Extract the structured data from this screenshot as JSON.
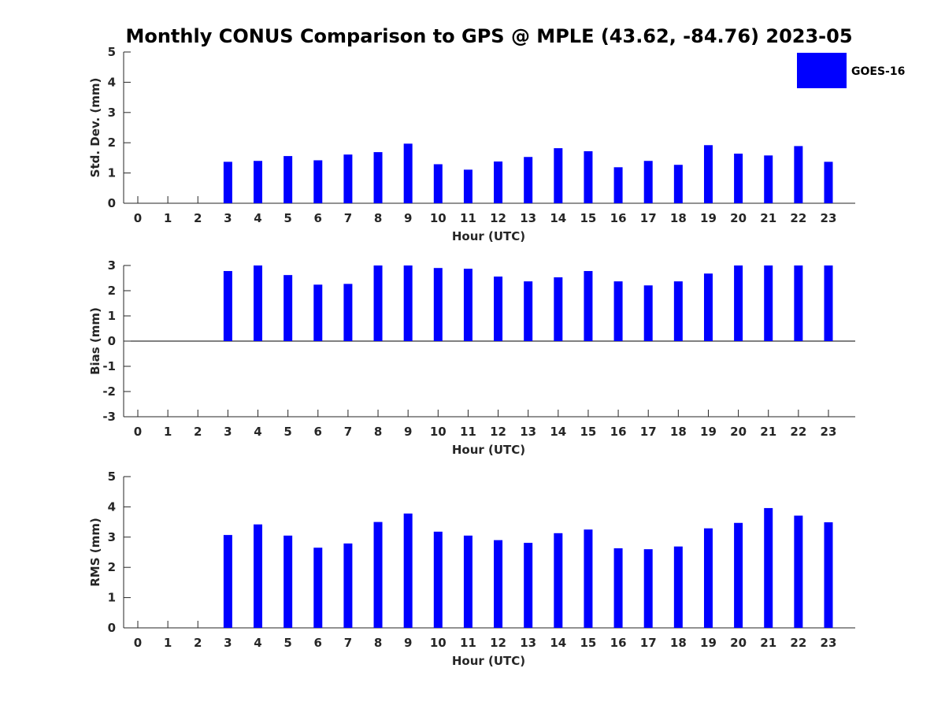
{
  "chart_data": {
    "type": "bar",
    "title": "Monthly CONUS Comparison to GPS @ MPLE (43.62, -84.76) 2023-05",
    "legend": {
      "label": "GOES-16",
      "color": "#0000ff",
      "position": "top-right"
    },
    "categories": [
      "0",
      "1",
      "2",
      "3",
      "4",
      "5",
      "6",
      "7",
      "8",
      "9",
      "10",
      "11",
      "12",
      "13",
      "14",
      "15",
      "16",
      "17",
      "18",
      "19",
      "20",
      "21",
      "22",
      "23"
    ],
    "panels": [
      {
        "name": "std-dev",
        "xlabel": "Hour (UTC)",
        "ylabel": "Std. Dev. (mm)",
        "ylim": [
          0,
          5
        ],
        "yticks": [
          "0",
          "1",
          "2",
          "3",
          "4",
          "5"
        ],
        "values": [
          null,
          null,
          null,
          1.37,
          1.4,
          1.56,
          1.42,
          1.61,
          1.69,
          1.97,
          1.29,
          1.11,
          1.38,
          1.53,
          1.82,
          1.72,
          1.19,
          1.4,
          1.27,
          1.92,
          1.64,
          1.58,
          1.89,
          1.37
        ]
      },
      {
        "name": "bias",
        "xlabel": "Hour (UTC)",
        "ylabel": "Bias (mm)",
        "ylim": [
          -3,
          3
        ],
        "yticks": [
          "-3",
          "-2",
          "-1",
          "0",
          "1",
          "2",
          "3"
        ],
        "values": [
          null,
          null,
          null,
          2.78,
          3.0,
          2.62,
          2.24,
          2.27,
          3.0,
          3.0,
          2.9,
          2.87,
          2.56,
          2.37,
          2.53,
          2.78,
          2.37,
          2.21,
          2.37,
          2.68,
          3.0,
          3.0,
          3.0,
          3.0
        ]
      },
      {
        "name": "rms",
        "xlabel": "Hour (UTC)",
        "ylabel": "RMS (mm)",
        "ylim": [
          0,
          5
        ],
        "yticks": [
          "0",
          "1",
          "2",
          "3",
          "4",
          "5"
        ],
        "values": [
          null,
          null,
          null,
          3.07,
          3.42,
          3.05,
          2.65,
          2.79,
          3.5,
          3.78,
          3.18,
          3.05,
          2.9,
          2.81,
          3.13,
          3.25,
          2.63,
          2.6,
          2.69,
          3.29,
          3.47,
          3.96,
          3.71,
          3.49
        ]
      }
    ]
  }
}
